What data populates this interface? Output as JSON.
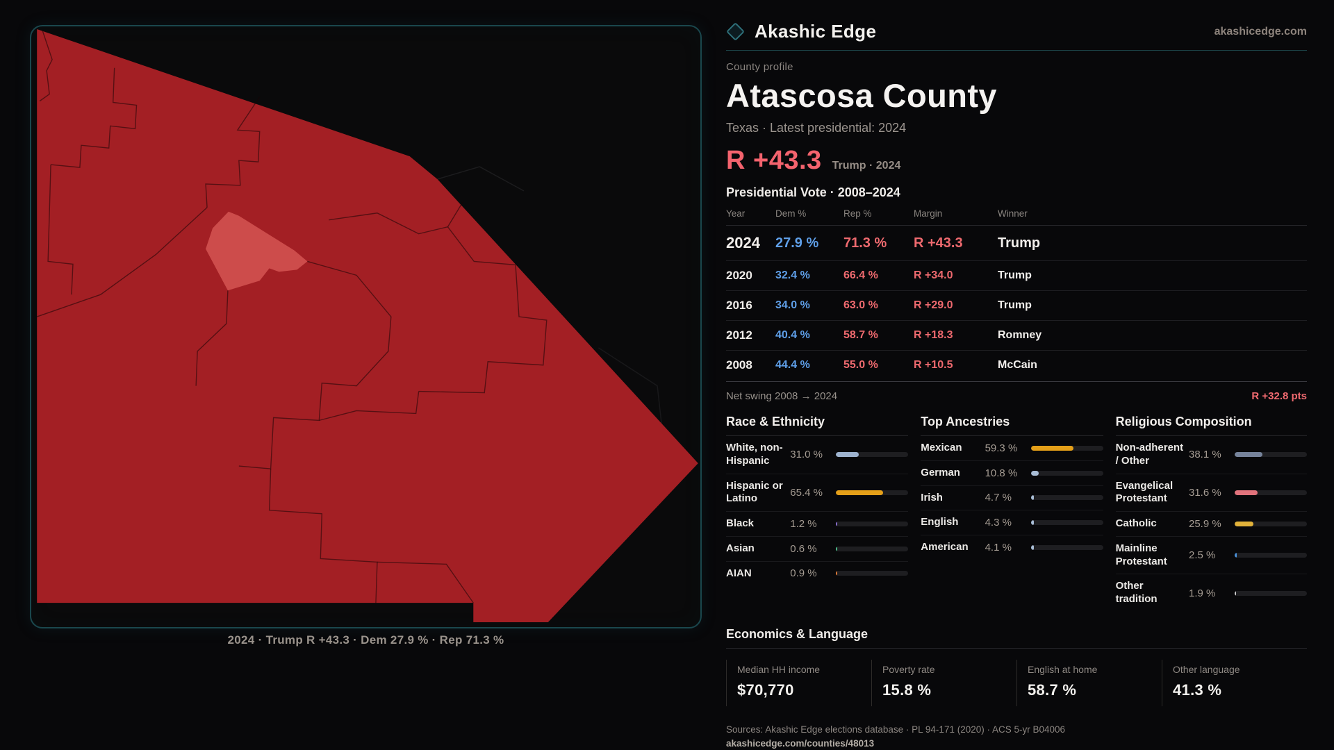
{
  "colors": {
    "accent-red": "#f4636e",
    "dem-blue": "#5f9fe8",
    "rep-red": "#ef6a6f",
    "map-red": "#a31f24",
    "map-red-light": "#cd4c4b",
    "panel-border": "#1a474d"
  },
  "header": {
    "brand": "Akashic Edge",
    "domain": "akashicedge.com"
  },
  "map": {
    "caption": "2024 · Trump R +43.3 · Dem 27.9 % · Rep 71.3 %"
  },
  "profile": {
    "eyebrow": "County profile",
    "title": "Atascosa County",
    "subtitle": "Texas · Latest presidential: 2024",
    "margin_value": "R +43.3",
    "margin_context": "Trump · 2024"
  },
  "table": {
    "title": "Presidential Vote · 2008–2024",
    "headers": {
      "year": "Year",
      "dem": "Dem %",
      "rep": "Rep %",
      "margin": "Margin",
      "winner": "Winner"
    },
    "rows": [
      {
        "year": "2024",
        "dem": "27.9 %",
        "rep": "71.3 %",
        "margin": "R +43.3",
        "winner": "Trump"
      },
      {
        "year": "2020",
        "dem": "32.4 %",
        "rep": "66.4 %",
        "margin": "R +34.0",
        "winner": "Trump"
      },
      {
        "year": "2016",
        "dem": "34.0 %",
        "rep": "63.0 %",
        "margin": "R +29.0",
        "winner": "Trump"
      },
      {
        "year": "2012",
        "dem": "40.4 %",
        "rep": "58.7 %",
        "margin": "R +18.3",
        "winner": "Romney"
      },
      {
        "year": "2008",
        "dem": "44.4 %",
        "rep": "55.0 %",
        "margin": "R +10.5",
        "winner": "McCain"
      }
    ],
    "net_swing_label": "Net swing 2008 → 2024",
    "net_swing_value": "R +32.8 pts"
  },
  "demographics": {
    "race": {
      "title": "Race & Ethnicity",
      "rows": [
        {
          "label": "White, non-Hispanic",
          "value": "31.0 %",
          "pct": 31.0,
          "color": "#9eb3cf"
        },
        {
          "label": "Hispanic or Latino",
          "value": "65.4 %",
          "pct": 65.4,
          "color": "#e5a019"
        },
        {
          "label": "Black",
          "value": "1.2 %",
          "pct": 1.2,
          "color": "#8b6fd0"
        },
        {
          "label": "Asian",
          "value": "0.6 %",
          "pct": 0.6,
          "color": "#4fc08d"
        },
        {
          "label": "AIAN",
          "value": "0.9 %",
          "pct": 0.9,
          "color": "#e07b39"
        }
      ]
    },
    "ancestries": {
      "title": "Top Ancestries",
      "rows": [
        {
          "label": "Mexican",
          "value": "59.3 %",
          "pct": 59.3,
          "color": "#e5a019"
        },
        {
          "label": "German",
          "value": "10.8 %",
          "pct": 10.8,
          "color": "#a9bdd6"
        },
        {
          "label": "Irish",
          "value": "4.7 %",
          "pct": 4.7,
          "color": "#a9bdd6"
        },
        {
          "label": "English",
          "value": "4.3 %",
          "pct": 4.3,
          "color": "#a9bdd6"
        },
        {
          "label": "American",
          "value": "4.1 %",
          "pct": 4.1,
          "color": "#a9bdd6"
        }
      ]
    },
    "religion": {
      "title": "Religious Composition",
      "rows": [
        {
          "label": "Non-adherent / Other",
          "value": "38.1 %",
          "pct": 38.1,
          "color": "#76839b"
        },
        {
          "label": "Evangelical Protestant",
          "value": "31.6 %",
          "pct": 31.6,
          "color": "#e2737c"
        },
        {
          "label": "Catholic",
          "value": "25.9 %",
          "pct": 25.9,
          "color": "#e2b23a"
        },
        {
          "label": "Mainline Protestant",
          "value": "2.5 %",
          "pct": 2.5,
          "color": "#4a90d9"
        },
        {
          "label": "Other tradition",
          "value": "1.9 %",
          "pct": 1.9,
          "color": "#c9c9c9"
        }
      ]
    }
  },
  "economics": {
    "title": "Economics & Language",
    "stats": [
      {
        "label": "Median HH income",
        "value": "$70,770"
      },
      {
        "label": "Poverty rate",
        "value": "15.8 %"
      },
      {
        "label": "English at home",
        "value": "58.7 %"
      },
      {
        "label": "Other language",
        "value": "41.3 %"
      }
    ]
  },
  "footer": {
    "sources": "Sources: Akashic Edge elections database · PL 94-171 (2020) · ACS 5-yr B04006",
    "permalink": "akashicedge.com/counties/48013"
  }
}
